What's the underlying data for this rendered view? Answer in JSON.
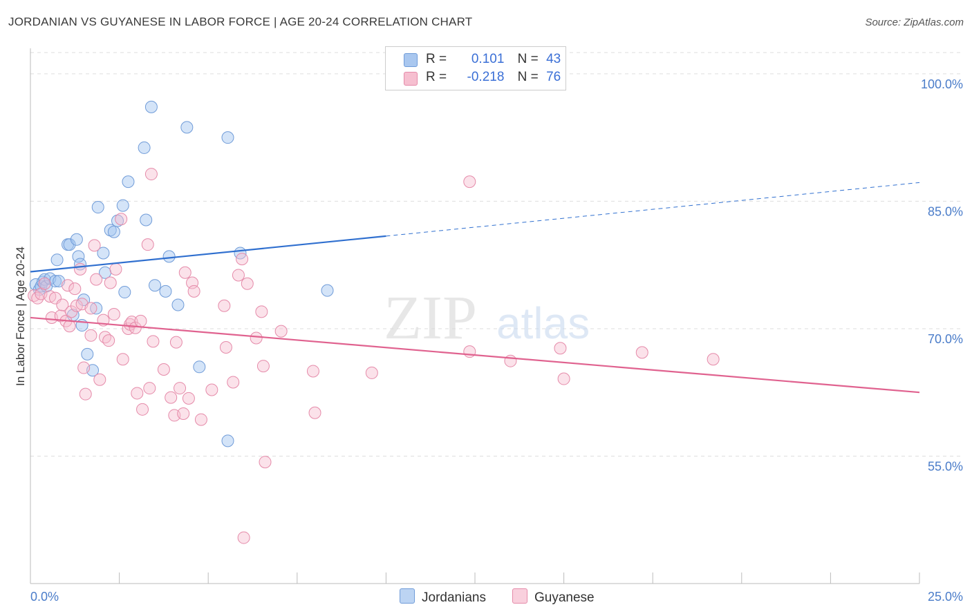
{
  "title": "JORDANIAN VS GUYANESE IN LABOR FORCE | AGE 20-24 CORRELATION CHART",
  "source": "Source: ZipAtlas.com",
  "watermark": {
    "zip": "ZIP",
    "atlas": "atlas"
  },
  "legend": {
    "rows": [
      {
        "r_label": "R =",
        "r_value": "0.101",
        "n_label": "N =",
        "n_value": "43",
        "color": "#a9c7ef",
        "stroke": "#6f9bd8"
      },
      {
        "r_label": "R =",
        "r_value": "-0.218",
        "n_label": "N =",
        "n_value": "76",
        "color": "#f6bfd0",
        "stroke": "#e58aa9"
      }
    ]
  },
  "bottom_legend": [
    {
      "label": "Jordanians",
      "color": "#bcd4f3",
      "stroke": "#6f9bd8"
    },
    {
      "label": "Guyanese",
      "color": "#f9d0dd",
      "stroke": "#e58aa9"
    }
  ],
  "chart_data": {
    "type": "scatter",
    "xlabel": "",
    "ylabel": "In Labor Force | Age 20-24",
    "xlim": [
      0,
      25
    ],
    "ylim": [
      40,
      103
    ],
    "x_tick_labels": [
      "0.0%",
      "25.0%"
    ],
    "y_ticks": [
      55,
      70,
      85,
      100
    ],
    "y_tick_labels": [
      "55.0%",
      "70.0%",
      "85.0%",
      "100.0%"
    ],
    "grid": true,
    "series": [
      {
        "name": "Jordanians",
        "color": "#6f9bd8",
        "fill": "rgba(160,196,240,0.45)",
        "points": [
          [
            0.15,
            75.2
          ],
          [
            0.25,
            74.6
          ],
          [
            0.3,
            75.0
          ],
          [
            0.35,
            75.5
          ],
          [
            0.4,
            75.8
          ],
          [
            0.45,
            75.0
          ],
          [
            0.55,
            75.9
          ],
          [
            0.7,
            75.6
          ],
          [
            0.8,
            75.6
          ],
          [
            0.75,
            78.1
          ],
          [
            1.05,
            79.9
          ],
          [
            1.1,
            79.9
          ],
          [
            1.3,
            80.5
          ],
          [
            1.35,
            78.5
          ],
          [
            1.4,
            77.6
          ],
          [
            1.5,
            73.4
          ],
          [
            1.45,
            70.4
          ],
          [
            1.2,
            71.6
          ],
          [
            1.6,
            67.0
          ],
          [
            1.75,
            65.1
          ],
          [
            1.85,
            72.4
          ],
          [
            1.9,
            84.3
          ],
          [
            2.05,
            78.9
          ],
          [
            2.1,
            76.6
          ],
          [
            2.25,
            81.6
          ],
          [
            2.35,
            81.4
          ],
          [
            2.45,
            82.7
          ],
          [
            2.6,
            84.5
          ],
          [
            2.65,
            74.3
          ],
          [
            2.75,
            87.3
          ],
          [
            3.2,
            91.3
          ],
          [
            3.25,
            82.8
          ],
          [
            3.4,
            96.1
          ],
          [
            3.5,
            75.1
          ],
          [
            3.8,
            74.4
          ],
          [
            3.9,
            78.5
          ],
          [
            4.15,
            72.8
          ],
          [
            4.4,
            93.7
          ],
          [
            4.75,
            65.5
          ],
          [
            5.55,
            92.5
          ],
          [
            5.9,
            78.9
          ],
          [
            5.55,
            56.8
          ],
          [
            8.35,
            74.5
          ]
        ],
        "trend": {
          "x": [
            0,
            10
          ],
          "y": [
            76.7,
            80.9
          ]
        },
        "trend_ext": {
          "x": [
            10,
            25
          ],
          "y": [
            80.9,
            87.2
          ]
        }
      },
      {
        "name": "Guyanese",
        "color": "#e58aa9",
        "fill": "rgba(246,191,208,0.45)",
        "points": [
          [
            0.1,
            73.9
          ],
          [
            0.2,
            73.6
          ],
          [
            0.3,
            74.1
          ],
          [
            0.4,
            75.3
          ],
          [
            0.55,
            73.8
          ],
          [
            0.6,
            71.3
          ],
          [
            0.7,
            73.6
          ],
          [
            0.85,
            71.5
          ],
          [
            0.9,
            72.8
          ],
          [
            1.0,
            70.9
          ],
          [
            1.05,
            75.1
          ],
          [
            1.1,
            70.3
          ],
          [
            1.15,
            72.0
          ],
          [
            1.25,
            74.7
          ],
          [
            1.3,
            72.7
          ],
          [
            1.4,
            77.0
          ],
          [
            1.45,
            72.9
          ],
          [
            1.5,
            65.4
          ],
          [
            1.55,
            62.3
          ],
          [
            1.7,
            72.4
          ],
          [
            1.7,
            69.2
          ],
          [
            1.8,
            79.8
          ],
          [
            1.85,
            75.8
          ],
          [
            1.95,
            64.0
          ],
          [
            2.05,
            71.0
          ],
          [
            2.1,
            69.0
          ],
          [
            2.2,
            68.6
          ],
          [
            2.25,
            75.4
          ],
          [
            2.35,
            71.7
          ],
          [
            2.4,
            77.0
          ],
          [
            2.55,
            82.9
          ],
          [
            2.6,
            66.4
          ],
          [
            2.75,
            70.0
          ],
          [
            2.8,
            70.5
          ],
          [
            2.85,
            70.8
          ],
          [
            2.95,
            70.1
          ],
          [
            3.0,
            62.4
          ],
          [
            3.1,
            70.9
          ],
          [
            3.15,
            60.5
          ],
          [
            3.3,
            79.9
          ],
          [
            3.35,
            63.0
          ],
          [
            3.4,
            88.2
          ],
          [
            3.45,
            68.5
          ],
          [
            3.75,
            65.2
          ],
          [
            3.95,
            61.9
          ],
          [
            4.05,
            59.8
          ],
          [
            4.1,
            68.4
          ],
          [
            4.2,
            63.0
          ],
          [
            4.3,
            60.0
          ],
          [
            4.35,
            76.6
          ],
          [
            4.45,
            61.8
          ],
          [
            4.55,
            75.4
          ],
          [
            4.6,
            74.4
          ],
          [
            4.8,
            59.3
          ],
          [
            5.1,
            62.8
          ],
          [
            5.45,
            72.7
          ],
          [
            5.5,
            67.8
          ],
          [
            5.7,
            63.7
          ],
          [
            5.85,
            76.3
          ],
          [
            5.95,
            78.2
          ],
          [
            6.1,
            75.3
          ],
          [
            6.35,
            68.9
          ],
          [
            6.5,
            72.0
          ],
          [
            6.55,
            65.6
          ],
          [
            6.6,
            54.3
          ],
          [
            7.05,
            69.7
          ],
          [
            7.95,
            65.0
          ],
          [
            8.0,
            60.1
          ],
          [
            6.0,
            45.4
          ],
          [
            9.6,
            64.8
          ],
          [
            12.35,
            87.3
          ],
          [
            12.35,
            67.3
          ],
          [
            13.5,
            66.2
          ],
          [
            14.9,
            67.7
          ],
          [
            15.0,
            64.1
          ],
          [
            17.2,
            67.2
          ],
          [
            19.2,
            66.4
          ]
        ],
        "trend": {
          "x": [
            0,
            25
          ],
          "y": [
            71.3,
            62.5
          ]
        }
      }
    ]
  }
}
